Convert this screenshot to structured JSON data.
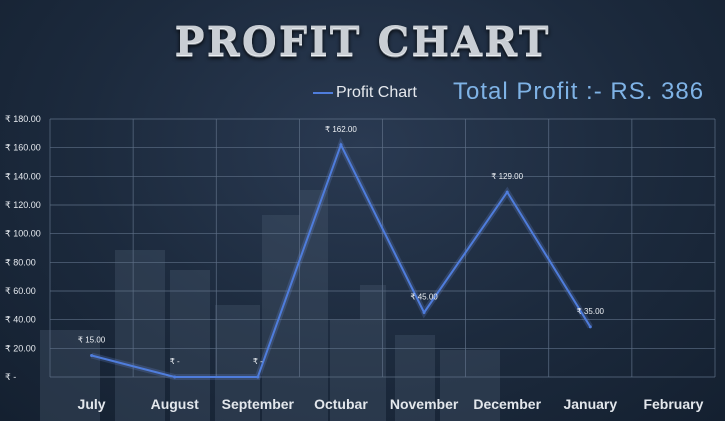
{
  "title": "PROFIT CHART",
  "legend": {
    "label": "Profit Chart"
  },
  "total_profit": "Total Profit :- RS. 386",
  "colors": {
    "line": "#4f7ddc",
    "total_text": "#7fb3e6",
    "grid": "#5e6f86"
  },
  "chart_data": {
    "type": "line",
    "title": "PROFIT CHART",
    "categories": [
      "July",
      "August",
      "September",
      "Octubar",
      "November",
      "December",
      "January",
      "February"
    ],
    "series": [
      {
        "name": "Profit Chart",
        "values": [
          15,
          0,
          0,
          162,
          45,
          129,
          35,
          null
        ]
      }
    ],
    "data_labels": [
      "₹ 15.00",
      "₹ -",
      "₹ -",
      "₹ 162.00",
      "₹ 45.00",
      "₹ 129.00",
      "₹ 35.00",
      ""
    ],
    "y_ticks": [
      {
        "value": 0,
        "label": "₹ -"
      },
      {
        "value": 20,
        "label": "₹ 20.00"
      },
      {
        "value": 40,
        "label": "₹ 40.00"
      },
      {
        "value": 60,
        "label": "₹ 60.00"
      },
      {
        "value": 80,
        "label": "₹ 80.00"
      },
      {
        "value": 100,
        "label": "₹ 100.00"
      },
      {
        "value": 120,
        "label": "₹ 120.00"
      },
      {
        "value": 140,
        "label": "₹ 140.00"
      },
      {
        "value": 160,
        "label": "₹ 160.00"
      },
      {
        "value": 180,
        "label": "₹ 180.00"
      }
    ],
    "ylim": [
      0,
      180
    ],
    "grid": true,
    "legend_position": "top"
  }
}
